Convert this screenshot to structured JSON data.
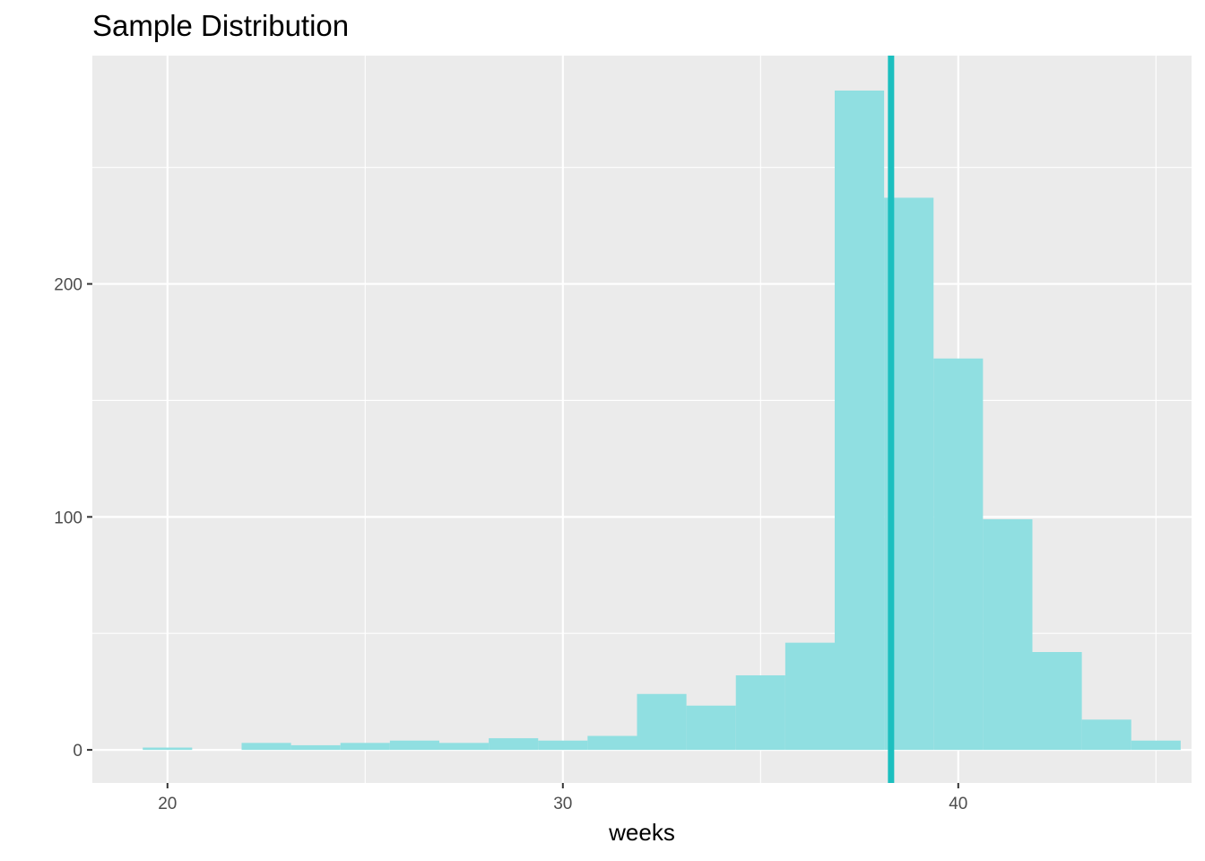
{
  "chart_data": {
    "type": "bar",
    "title": "Sample Distribution",
    "xlabel": "weeks",
    "ylabel": "",
    "xlim": [
      18.1,
      45.9
    ],
    "ylim": [
      -14.2,
      298
    ],
    "x_ticks": [
      20,
      30,
      40
    ],
    "y_ticks": [
      0,
      100,
      200
    ],
    "grid": true,
    "bar_color": "#90DFE1",
    "bin_width": 1.25,
    "bins": [
      {
        "x0": 19.375,
        "count": 1
      },
      {
        "x0": 20.625,
        "count": 0
      },
      {
        "x0": 21.875,
        "count": 3
      },
      {
        "x0": 23.125,
        "count": 2
      },
      {
        "x0": 24.375,
        "count": 3
      },
      {
        "x0": 25.625,
        "count": 4
      },
      {
        "x0": 26.875,
        "count": 3
      },
      {
        "x0": 28.125,
        "count": 5
      },
      {
        "x0": 29.375,
        "count": 4
      },
      {
        "x0": 30.625,
        "count": 6
      },
      {
        "x0": 31.875,
        "count": 24
      },
      {
        "x0": 33.125,
        "count": 19
      },
      {
        "x0": 34.375,
        "count": 32
      },
      {
        "x0": 35.625,
        "count": 46
      },
      {
        "x0": 36.875,
        "count": 283
      },
      {
        "x0": 38.125,
        "count": 237
      },
      {
        "x0": 39.375,
        "count": 168
      },
      {
        "x0": 40.625,
        "count": 99
      },
      {
        "x0": 41.875,
        "count": 42
      },
      {
        "x0": 43.125,
        "count": 13
      },
      {
        "x0": 44.375,
        "count": 4
      }
    ],
    "vline": {
      "x": 38.3,
      "color": "#1CBFBF"
    }
  }
}
